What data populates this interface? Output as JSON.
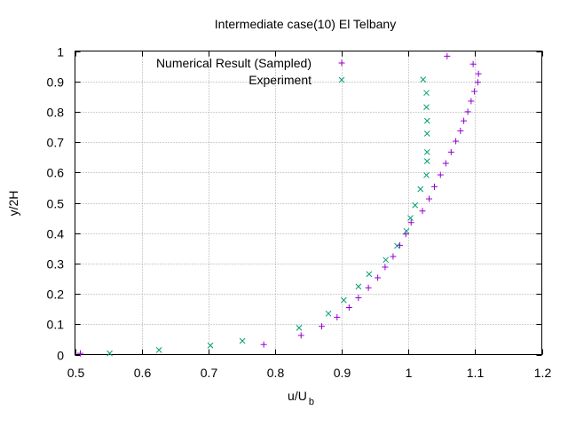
{
  "chart_data": {
    "type": "scatter",
    "title": "Intermediate case(10) El Telbany",
    "xlabel": "u/U",
    "xlabel_subscript": "b",
    "ylabel": "y/2H",
    "xlim": [
      0.5,
      1.2
    ],
    "ylim": [
      0,
      1
    ],
    "xticks": [
      "0.5",
      "0.6",
      "0.7",
      "0.8",
      "0.9",
      "1",
      "1.1",
      "1.2"
    ],
    "yticks": [
      "0",
      "0.1",
      "0.2",
      "0.3",
      "0.4",
      "0.5",
      "0.6",
      "0.7",
      "0.8",
      "0.9",
      "1"
    ],
    "grid": true,
    "legend_position": "top-center",
    "series": [
      {
        "name": "Numerical Result (Sampled)",
        "marker": "plus",
        "color": "#9400d3",
        "points": [
          [
            0.508,
            0.004
          ],
          [
            0.783,
            0.033
          ],
          [
            0.839,
            0.063
          ],
          [
            0.87,
            0.093
          ],
          [
            0.893,
            0.123
          ],
          [
            0.911,
            0.155
          ],
          [
            0.925,
            0.187
          ],
          [
            0.94,
            0.22
          ],
          [
            0.954,
            0.253
          ],
          [
            0.965,
            0.288
          ],
          [
            0.977,
            0.323
          ],
          [
            0.987,
            0.36
          ],
          [
            0.996,
            0.397
          ],
          [
            1.004,
            0.435
          ],
          [
            1.021,
            0.473
          ],
          [
            1.031,
            0.513
          ],
          [
            1.039,
            0.553
          ],
          [
            1.048,
            0.592
          ],
          [
            1.056,
            0.63
          ],
          [
            1.064,
            0.667
          ],
          [
            1.071,
            0.703
          ],
          [
            1.078,
            0.737
          ],
          [
            1.083,
            0.77
          ],
          [
            1.089,
            0.8
          ],
          [
            1.094,
            0.835
          ],
          [
            1.099,
            0.867
          ],
          [
            1.104,
            0.897
          ],
          [
            1.105,
            0.925
          ],
          [
            1.097,
            0.957
          ],
          [
            1.058,
            0.983
          ]
        ]
      },
      {
        "name": "Experiment",
        "marker": "cross",
        "color": "#009e73",
        "points": [
          [
            0.552,
            0.004
          ],
          [
            0.626,
            0.015
          ],
          [
            0.703,
            0.03
          ],
          [
            0.751,
            0.045
          ],
          [
            0.836,
            0.088
          ],
          [
            0.88,
            0.135
          ],
          [
            0.903,
            0.179
          ],
          [
            0.925,
            0.224
          ],
          [
            0.941,
            0.265
          ],
          [
            0.966,
            0.312
          ],
          [
            0.983,
            0.358
          ],
          [
            0.997,
            0.407
          ],
          [
            1.003,
            0.45
          ],
          [
            1.01,
            0.492
          ],
          [
            1.018,
            0.545
          ],
          [
            1.027,
            0.591
          ],
          [
            1.028,
            0.637
          ],
          [
            1.028,
            0.667
          ],
          [
            1.028,
            0.728
          ],
          [
            1.028,
            0.77
          ],
          [
            1.027,
            0.815
          ],
          [
            1.027,
            0.862
          ],
          [
            1.022,
            0.906
          ]
        ]
      }
    ]
  }
}
